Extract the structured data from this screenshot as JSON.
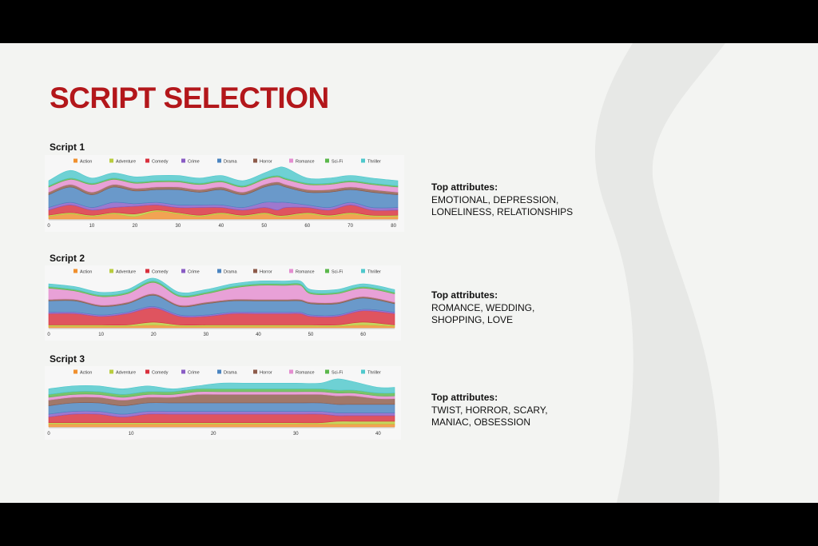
{
  "slide": {
    "title": "SCRIPT SELECTION"
  },
  "genre_colors": {
    "Action": "#f0902e",
    "Adventure": "#b9cc3e",
    "Comedy": "#d9303d",
    "Crime": "#8a5cc4",
    "Drama": "#4a84c0",
    "Horror": "#8e5b4a",
    "Romance": "#e48ed0",
    "Sci-Fi": "#5cb84c",
    "Thriller": "#4fc8cc"
  },
  "scripts": [
    {
      "title": "Script 1",
      "attributes_label": "Top attributes:",
      "attributes_line1": "EMOTIONAL, DEPRESSION,",
      "attributes_line2": "LONELINESS, RELATIONSHIPS"
    },
    {
      "title": "Script 2",
      "attributes_label": "Top attributes:",
      "attributes_line1": "ROMANCE, WEDDING,",
      "attributes_line2": "SHOPPING, LOVE"
    },
    {
      "title": "Script 3",
      "attributes_label": "Top attributes:",
      "attributes_line1": "TWIST, HORROR, SCARY,",
      "attributes_line2": "MANIAC, OBSESSION"
    }
  ],
  "chart_data": [
    {
      "type": "area",
      "stacked": true,
      "legend_position": "top",
      "grid": false,
      "title": "Script 1",
      "categories": [
        "Action",
        "Adventure",
        "Comedy",
        "Crime",
        "Drama",
        "Horror",
        "Romance",
        "Sci-Fi",
        "Thriller"
      ],
      "xlim": [
        0,
        81
      ],
      "xticks": [
        0,
        10,
        20,
        30,
        40,
        50,
        60,
        70,
        80
      ],
      "x": [
        0,
        5,
        10,
        15,
        20,
        25,
        30,
        35,
        40,
        45,
        50,
        53,
        55,
        60,
        65,
        70,
        75,
        81
      ],
      "series": [
        {
          "name": "Action",
          "values": [
            1,
            2,
            1,
            2,
            1,
            3,
            2,
            1,
            2,
            1,
            2,
            1,
            1,
            2,
            1,
            2,
            1,
            1
          ]
        },
        {
          "name": "Adventure",
          "values": [
            0.5,
            0.5,
            0.5,
            0.5,
            1,
            0.5,
            0.5,
            0.5,
            0.5,
            0.5,
            0.5,
            0.5,
            0.5,
            0.5,
            0.5,
            0.5,
            0.5,
            0.5
          ]
        },
        {
          "name": "Comedy",
          "values": [
            2,
            3,
            2,
            2,
            3,
            2,
            2,
            3,
            2,
            2,
            2,
            2,
            3,
            2,
            2,
            3,
            2,
            2
          ]
        },
        {
          "name": "Crime",
          "values": [
            1,
            1,
            1,
            2,
            1,
            1,
            1,
            1,
            1,
            1,
            2,
            3,
            2,
            1,
            1,
            1,
            1,
            1
          ]
        },
        {
          "name": "Drama",
          "values": [
            5,
            6,
            5,
            6,
            5,
            5,
            6,
            5,
            6,
            5,
            6,
            7,
            6,
            5,
            6,
            5,
            6,
            5
          ]
        },
        {
          "name": "Horror",
          "values": [
            1,
            1,
            1,
            1,
            1,
            1,
            1,
            1,
            1,
            1,
            1,
            1,
            1,
            1,
            1,
            1,
            1,
            1
          ]
        },
        {
          "name": "Romance",
          "values": [
            2,
            2,
            3,
            2,
            2,
            2,
            2,
            2,
            2,
            2,
            2,
            2,
            2,
            2,
            2,
            2,
            2,
            2
          ]
        },
        {
          "name": "Sci-Fi",
          "values": [
            0.5,
            0.5,
            0.5,
            0.5,
            0.5,
            0.5,
            0.5,
            0.5,
            0.5,
            0.5,
            0.5,
            0.5,
            0.5,
            0.5,
            0.5,
            0.5,
            0.5,
            0.5
          ]
        },
        {
          "name": "Thriller",
          "values": [
            2,
            3,
            2,
            2,
            2,
            2,
            2,
            2,
            2,
            2,
            2,
            3,
            4,
            2,
            2,
            2,
            2,
            2
          ]
        }
      ]
    },
    {
      "type": "area",
      "stacked": true,
      "legend_position": "top",
      "grid": false,
      "title": "Script 2",
      "categories": [
        "Action",
        "Adventure",
        "Comedy",
        "Crime",
        "Drama",
        "Horror",
        "Romance",
        "Sci-Fi",
        "Thriller"
      ],
      "xlim": [
        0,
        66
      ],
      "xticks": [
        0,
        10,
        20,
        30,
        40,
        50,
        60
      ],
      "x": [
        0,
        5,
        10,
        15,
        20,
        25,
        30,
        35,
        40,
        45,
        48,
        50,
        55,
        60,
        66
      ],
      "series": [
        {
          "name": "Action",
          "values": [
            0.5,
            0.5,
            0.5,
            0.5,
            1,
            0.5,
            0.5,
            0.5,
            0.5,
            0.5,
            0.5,
            0.5,
            0.5,
            1,
            0.5
          ]
        },
        {
          "name": "Adventure",
          "values": [
            0.5,
            0.5,
            0.5,
            0.5,
            1,
            0.5,
            0.5,
            0.5,
            0.5,
            0.5,
            0.5,
            0.5,
            0.5,
            1,
            0.5
          ]
        },
        {
          "name": "Comedy",
          "values": [
            4,
            4,
            3,
            4,
            5,
            3,
            3,
            4,
            4,
            4,
            4,
            3,
            3,
            4,
            4
          ]
        },
        {
          "name": "Crime",
          "values": [
            0.5,
            0.5,
            0.5,
            0.5,
            0.5,
            0.5,
            0.5,
            0.5,
            0.5,
            0.5,
            0.5,
            0.5,
            0.5,
            0.5,
            0.5
          ]
        },
        {
          "name": "Drama",
          "values": [
            4,
            4,
            3,
            3,
            4,
            3,
            4,
            4,
            4,
            4,
            4,
            4,
            4,
            4,
            3
          ]
        },
        {
          "name": "Horror",
          "values": [
            0.5,
            0.5,
            0.5,
            0.5,
            0.5,
            0.5,
            0.5,
            0.5,
            0.5,
            0.5,
            0.5,
            0.5,
            0.5,
            0.5,
            0.5
          ]
        },
        {
          "name": "Romance",
          "values": [
            4,
            3,
            3,
            3,
            4,
            3,
            3,
            4,
            5,
            5,
            5,
            3,
            3,
            3,
            3
          ]
        },
        {
          "name": "Sci-Fi",
          "values": [
            0.5,
            0.5,
            0.5,
            0.5,
            0.5,
            0.5,
            0.5,
            0.5,
            0.5,
            0.5,
            0.5,
            0.5,
            0.5,
            0.5,
            0.5
          ]
        },
        {
          "name": "Thriller",
          "values": [
            1,
            1,
            1,
            1,
            1,
            1,
            1,
            1,
            1,
            1,
            1,
            1,
            1,
            1,
            1
          ]
        }
      ]
    },
    {
      "type": "area",
      "stacked": true,
      "legend_position": "top",
      "grid": false,
      "title": "Script 3",
      "categories": [
        "Action",
        "Adventure",
        "Comedy",
        "Crime",
        "Drama",
        "Horror",
        "Romance",
        "Sci-Fi",
        "Thriller"
      ],
      "xlim": [
        0,
        42
      ],
      "xticks": [
        0,
        10,
        20,
        30,
        40
      ],
      "x": [
        0,
        3,
        6,
        9,
        12,
        15,
        18,
        21,
        24,
        27,
        30,
        33,
        35,
        37,
        40,
        42
      ],
      "series": [
        {
          "name": "Action",
          "values": [
            1,
            1,
            1,
            1,
            1,
            1,
            1,
            1,
            1,
            1,
            1,
            1,
            1,
            1,
            1,
            1
          ]
        },
        {
          "name": "Adventure",
          "values": [
            0.5,
            0.5,
            0.5,
            0.5,
            0.5,
            0.5,
            0.5,
            0.5,
            0.5,
            0.5,
            0.5,
            0.5,
            1,
            1,
            1,
            1
          ]
        },
        {
          "name": "Comedy",
          "values": [
            2,
            3,
            3,
            2,
            3,
            3,
            3,
            3,
            3,
            3,
            3,
            3,
            2,
            2,
            2,
            2
          ]
        },
        {
          "name": "Crime",
          "values": [
            1,
            1,
            1,
            1,
            1,
            1,
            1,
            1,
            1,
            1,
            1,
            1,
            1,
            1,
            1,
            1
          ]
        },
        {
          "name": "Drama",
          "values": [
            3,
            3,
            3,
            3,
            3,
            3,
            3,
            3,
            3,
            3,
            3,
            3,
            3,
            3,
            3,
            3
          ]
        },
        {
          "name": "Horror",
          "values": [
            2,
            2,
            2,
            2,
            2,
            2,
            3,
            3,
            3,
            3,
            3,
            3,
            3,
            3,
            2,
            2
          ]
        },
        {
          "name": "Romance",
          "values": [
            1,
            1,
            1,
            1,
            1,
            1,
            1,
            1,
            1,
            1,
            1,
            1,
            1,
            1,
            1,
            1
          ]
        },
        {
          "name": "Sci-Fi",
          "values": [
            1,
            1,
            1,
            1,
            1,
            1,
            1,
            1,
            1,
            1,
            1,
            1,
            1,
            1,
            1,
            1
          ]
        },
        {
          "name": "Thriller",
          "values": [
            2,
            2,
            2,
            2,
            2,
            1,
            1,
            2,
            2,
            2,
            2,
            2,
            4,
            3,
            2,
            2
          ]
        }
      ]
    }
  ]
}
